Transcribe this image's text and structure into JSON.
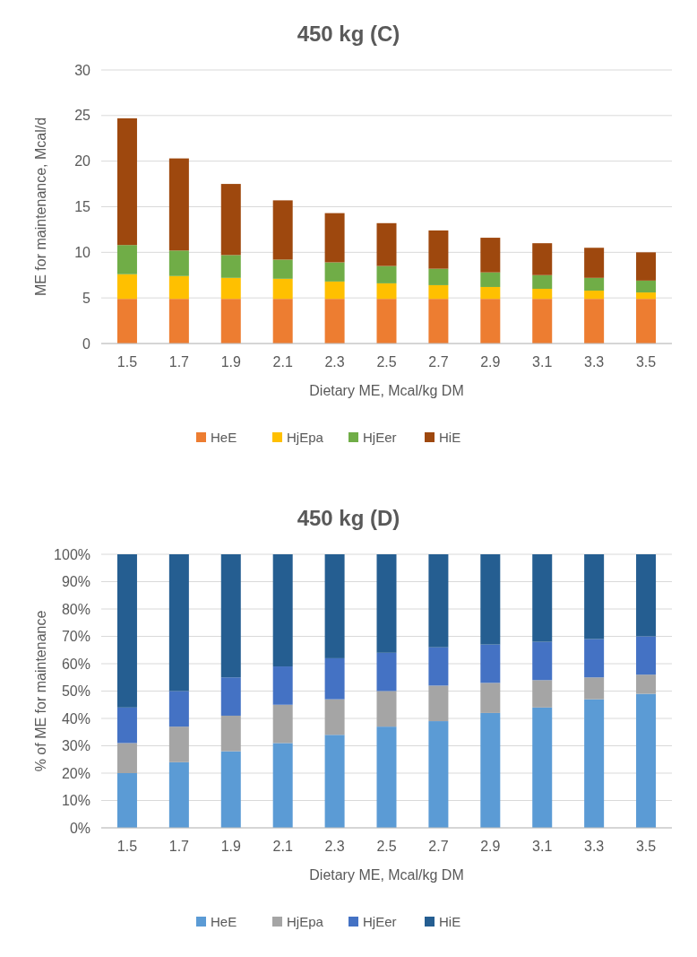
{
  "chart_data": [
    {
      "type": "bar",
      "stacked": true,
      "title": "450 kg (C)",
      "xlabel": "Dietary ME, Mcal/kg DM",
      "ylabel": "ME for maintenance, Mcal/d",
      "categories": [
        "1.5",
        "1.7",
        "1.9",
        "2.1",
        "2.3",
        "2.5",
        "2.7",
        "2.9",
        "3.1",
        "3.3",
        "3.5"
      ],
      "ylim": [
        0,
        30
      ],
      "yticks": [
        0,
        5,
        10,
        15,
        20,
        25,
        30
      ],
      "grid": "y",
      "legend": "bottom",
      "series": [
        {
          "name": "HeE",
          "color": "#ed7d31",
          "values": [
            4.9,
            4.9,
            4.9,
            4.9,
            4.9,
            4.9,
            4.9,
            4.9,
            4.9,
            4.9,
            4.9
          ]
        },
        {
          "name": "HjEpa",
          "color": "#ffc000",
          "values": [
            2.7,
            2.5,
            2.3,
            2.2,
            1.9,
            1.7,
            1.5,
            1.3,
            1.1,
            0.9,
            0.7
          ]
        },
        {
          "name": "HjEer",
          "color": "#70ad47",
          "values": [
            3.2,
            2.8,
            2.5,
            2.1,
            2.1,
            1.9,
            1.8,
            1.6,
            1.5,
            1.4,
            1.3
          ]
        },
        {
          "name": "HiE",
          "color": "#9e480e",
          "values": [
            13.9,
            10.1,
            7.8,
            6.5,
            5.4,
            4.7,
            4.2,
            3.8,
            3.5,
            3.3,
            3.1
          ]
        }
      ]
    },
    {
      "type": "bar",
      "stacked": true,
      "title": "450 kg (D)",
      "xlabel": "Dietary ME, Mcal/kg DM",
      "ylabel": "% of ME for maintenance",
      "categories": [
        "1.5",
        "1.7",
        "1.9",
        "2.1",
        "2.3",
        "2.5",
        "2.7",
        "2.9",
        "3.1",
        "3.3",
        "3.5"
      ],
      "ylim": [
        0,
        100
      ],
      "yticks": [
        {
          "value": 0,
          "label": "0%"
        },
        {
          "value": 10,
          "label": "10%"
        },
        {
          "value": 20,
          "label": "20%"
        },
        {
          "value": 30,
          "label": "30%"
        },
        {
          "value": 40,
          "label": "40%"
        },
        {
          "value": 50,
          "label": "50%"
        },
        {
          "value": 60,
          "label": "60%"
        },
        {
          "value": 70,
          "label": "70%"
        },
        {
          "value": 80,
          "label": "80%"
        },
        {
          "value": 90,
          "label": "90%"
        },
        {
          "value": 100,
          "label": "100%"
        }
      ],
      "grid": "y",
      "legend": "bottom",
      "series": [
        {
          "name": "HeE",
          "color": "#5b9bd5",
          "values": [
            20,
            24,
            28,
            31,
            34,
            37,
            39,
            42,
            44,
            47,
            49
          ]
        },
        {
          "name": "HjEpa",
          "color": "#a5a5a5",
          "values": [
            11,
            13,
            13,
            14,
            13,
            13,
            13,
            11,
            10,
            8,
            7
          ]
        },
        {
          "name": "HjEer",
          "color": "#4472c4",
          "values": [
            13,
            13,
            14,
            14,
            15,
            14,
            14,
            14,
            14,
            14,
            14
          ]
        },
        {
          "name": "HiE",
          "color": "#255e91",
          "values": [
            56,
            50,
            45,
            41,
            38,
            36,
            34,
            33,
            32,
            31,
            30
          ]
        }
      ]
    }
  ]
}
